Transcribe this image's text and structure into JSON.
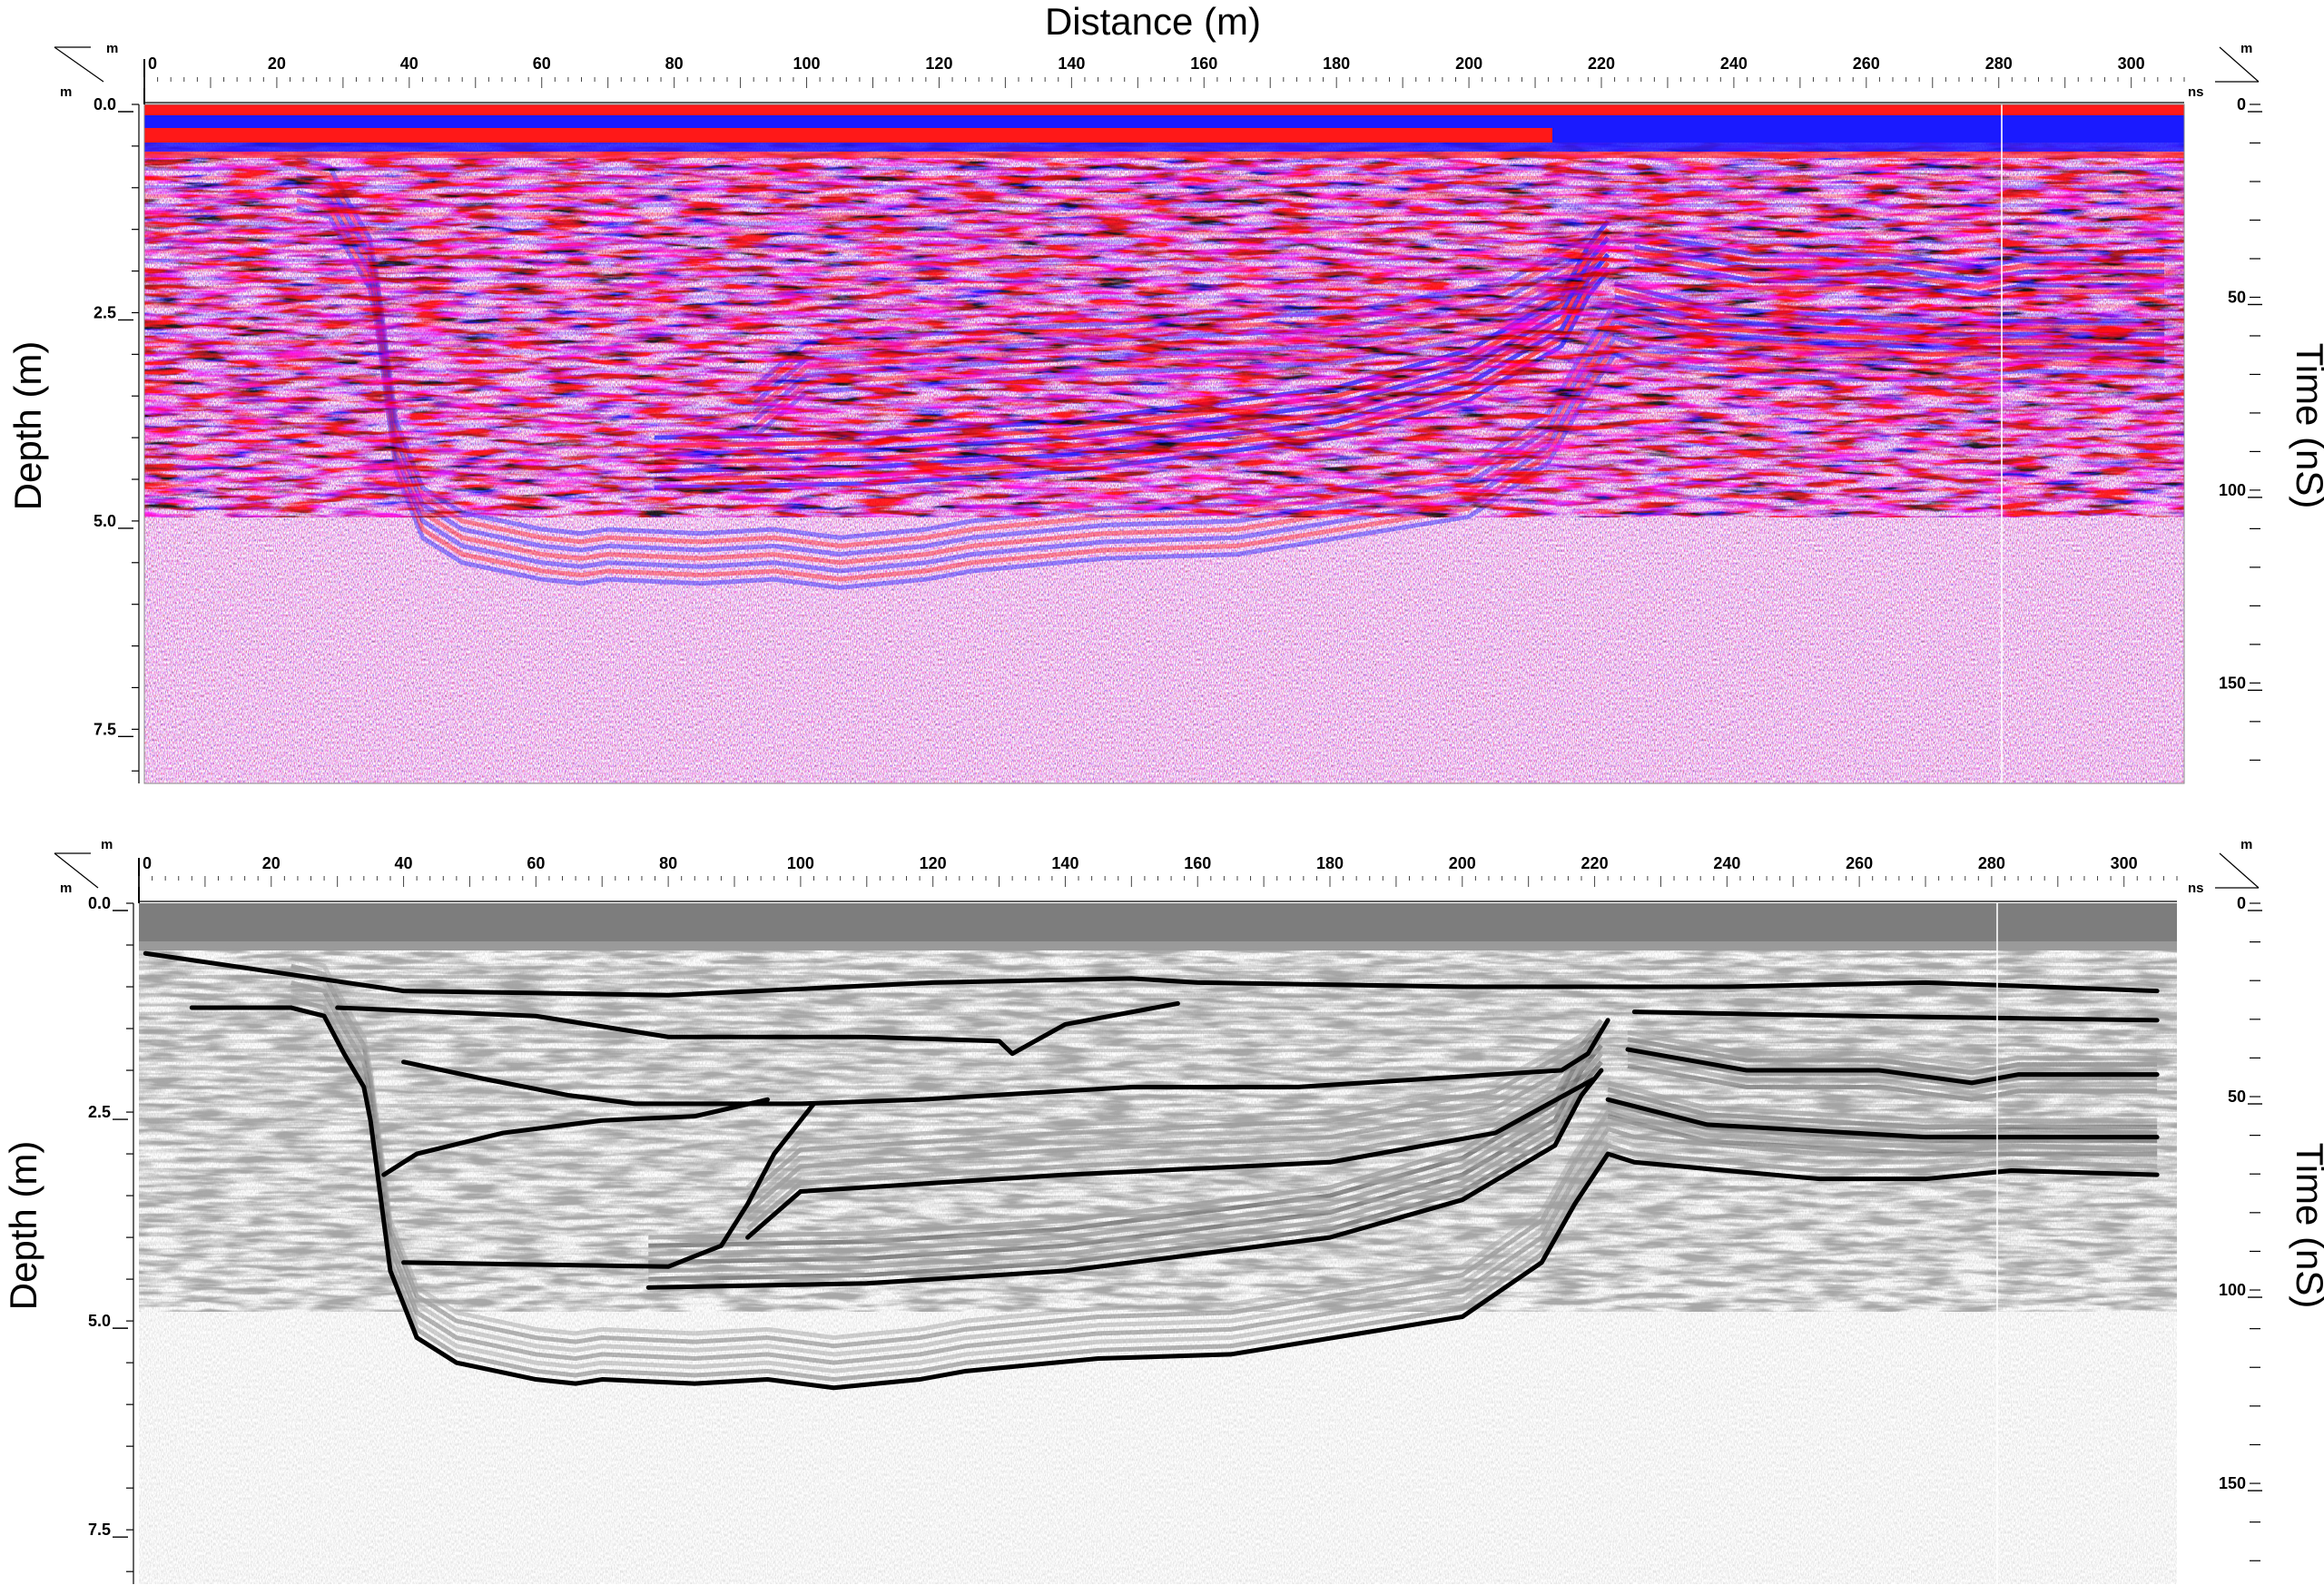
{
  "figure_title": "Distance (m)",
  "distance_ticks": [
    "0",
    "20",
    "40",
    "60",
    "80",
    "100",
    "120",
    "140",
    "160",
    "180",
    "200",
    "220",
    "240",
    "260",
    "280",
    "300"
  ],
  "depth_ticks": [
    "0.0",
    "2.5",
    "5.0",
    "7.5"
  ],
  "time_ticks": [
    "0",
    "50",
    "100",
    "150"
  ],
  "units": {
    "distance": "m",
    "depth": "m",
    "time": "ns"
  },
  "axis_labels": {
    "depth": "Depth (m)",
    "time": "Time (nS)"
  },
  "panels": [
    {
      "id": "top",
      "style": "color"
    },
    {
      "id": "bottom",
      "style": "grayscale-interpreted"
    }
  ],
  "colors": {
    "positive": "#ff2020",
    "negative": "#1e1eff",
    "background": "#ffffff",
    "interpretation": "#000000"
  },
  "interpretation_lines": [
    [
      [
        1,
        0.6
      ],
      [
        40,
        1.05
      ],
      [
        80,
        1.1
      ],
      [
        120,
        0.95
      ],
      [
        150,
        0.9
      ],
      [
        160,
        0.95
      ],
      [
        200,
        1.0
      ],
      [
        240,
        1.0
      ],
      [
        270,
        0.95
      ],
      [
        305,
        1.05
      ]
    ],
    [
      [
        8,
        1.25
      ],
      [
        23,
        1.25
      ]
    ],
    [
      [
        30,
        1.25
      ],
      [
        60,
        1.35
      ],
      [
        80,
        1.6
      ],
      [
        110,
        1.6
      ],
      [
        130,
        1.65
      ],
      [
        132,
        1.8
      ],
      [
        140,
        1.45
      ],
      [
        157,
        1.2
      ]
    ],
    [
      [
        23,
        1.25
      ],
      [
        28,
        1.35
      ],
      [
        31,
        1.8
      ],
      [
        34,
        2.2
      ],
      [
        35,
        2.6
      ],
      [
        36,
        3.2
      ],
      [
        37,
        3.8
      ],
      [
        38,
        4.4
      ],
      [
        42,
        5.2
      ],
      [
        48,
        5.5
      ],
      [
        60,
        5.7
      ],
      [
        66,
        5.75
      ],
      [
        70,
        5.7
      ],
      [
        84,
        5.75
      ],
      [
        95,
        5.7
      ],
      [
        105,
        5.8
      ],
      [
        118,
        5.7
      ],
      [
        125,
        5.6
      ],
      [
        145,
        5.45
      ],
      [
        165,
        5.4
      ],
      [
        200,
        4.95
      ],
      [
        212,
        4.3
      ],
      [
        217,
        3.6
      ],
      [
        222,
        3.0
      ],
      [
        226,
        3.1
      ],
      [
        254,
        3.3
      ],
      [
        270,
        3.3
      ],
      [
        283,
        3.2
      ],
      [
        305,
        3.25
      ]
    ],
    [
      [
        40,
        1.9
      ],
      [
        52,
        2.1
      ],
      [
        65,
        2.3
      ],
      [
        75,
        2.4
      ],
      [
        100,
        2.4
      ],
      [
        118,
        2.35
      ],
      [
        150,
        2.2
      ],
      [
        175,
        2.2
      ],
      [
        205,
        2.05
      ],
      [
        215,
        2.0
      ],
      [
        219,
        1.8
      ],
      [
        222,
        1.4
      ]
    ],
    [
      [
        37,
        3.25
      ],
      [
        42,
        3.0
      ],
      [
        55,
        2.75
      ],
      [
        70,
        2.6
      ],
      [
        84,
        2.55
      ],
      [
        95,
        2.35
      ]
    ],
    [
      [
        40,
        4.3
      ],
      [
        55,
        4.32
      ],
      [
        80,
        4.35
      ],
      [
        88,
        4.1
      ],
      [
        92,
        3.6
      ],
      [
        96,
        3.0
      ],
      [
        102,
        2.4
      ]
    ],
    [
      [
        92,
        4.0
      ],
      [
        100,
        3.45
      ],
      [
        120,
        3.35
      ],
      [
        140,
        3.25
      ],
      [
        180,
        3.1
      ],
      [
        205,
        2.75
      ],
      [
        220,
        2.1
      ]
    ],
    [
      [
        77,
        4.6
      ],
      [
        110,
        4.55
      ],
      [
        140,
        4.4
      ],
      [
        160,
        4.2
      ],
      [
        180,
        4.0
      ],
      [
        200,
        3.55
      ],
      [
        214,
        2.9
      ],
      [
        218,
        2.3
      ],
      [
        221,
        2.0
      ]
    ],
    [
      [
        226,
        1.3
      ],
      [
        260,
        1.35
      ],
      [
        305,
        1.4
      ]
    ],
    [
      [
        225,
        1.75
      ],
      [
        243,
        2.0
      ],
      [
        263,
        2.0
      ],
      [
        277,
        2.15
      ],
      [
        284,
        2.05
      ],
      [
        305,
        2.05
      ]
    ],
    [
      [
        222,
        2.35
      ],
      [
        237,
        2.65
      ],
      [
        270,
        2.8
      ],
      [
        305,
        2.8
      ]
    ]
  ]
}
